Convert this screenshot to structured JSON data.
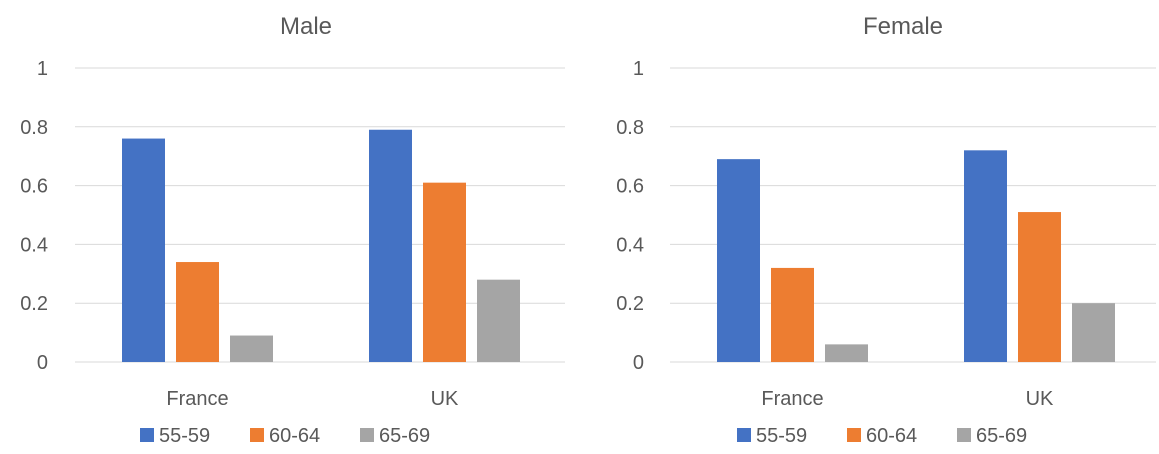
{
  "chart_data": [
    {
      "type": "bar",
      "title": "Male",
      "categories": [
        "France",
        "UK"
      ],
      "series": [
        {
          "name": "55-59",
          "values": [
            0.76,
            0.79
          ]
        },
        {
          "name": "60-64",
          "values": [
            0.34,
            0.61
          ]
        },
        {
          "name": "65-69",
          "values": [
            0.09,
            0.28
          ]
        }
      ],
      "yticks": [
        "0",
        "0.2",
        "0.4",
        "0.6",
        "0.8",
        "1"
      ],
      "ylim": [
        0,
        1
      ],
      "grid": true,
      "legend": "bottom"
    },
    {
      "type": "bar",
      "title": "Female",
      "categories": [
        "France",
        "UK"
      ],
      "series": [
        {
          "name": "55-59",
          "values": [
            0.69,
            0.72
          ]
        },
        {
          "name": "60-64",
          "values": [
            0.32,
            0.51
          ]
        },
        {
          "name": "65-69",
          "values": [
            0.06,
            0.2
          ]
        }
      ],
      "yticks": [
        "0",
        "0.2",
        "0.4",
        "0.6",
        "0.8",
        "1"
      ],
      "ylim": [
        0,
        1
      ],
      "grid": true,
      "legend": "bottom"
    }
  ],
  "colors": [
    "#4472c4",
    "#ed7d31",
    "#a5a5a5"
  ]
}
